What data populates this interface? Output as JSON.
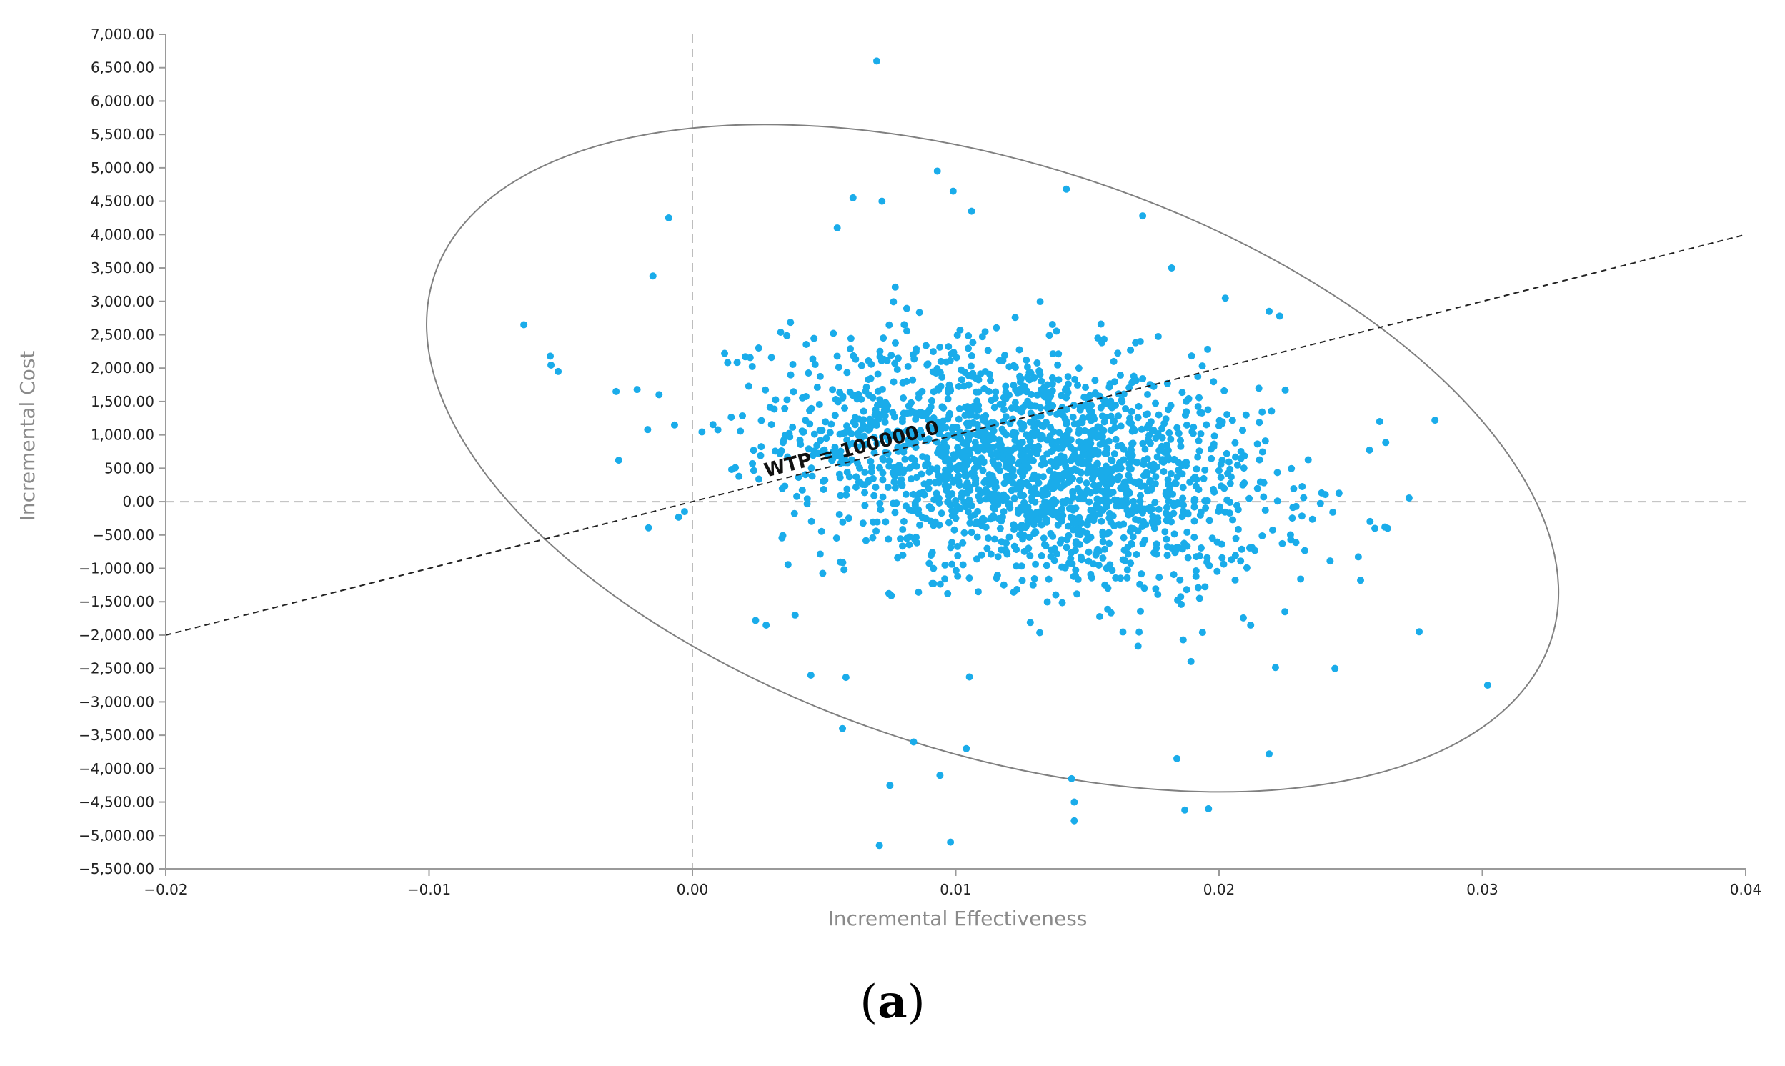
{
  "chart_data": {
    "type": "scatter",
    "xlabel": "Incremental Effectiveness",
    "ylabel": "Incremental Cost",
    "xlim": [
      -0.02,
      0.04
    ],
    "ylim": [
      -5500,
      7000
    ],
    "x_ticks": [
      "−0.02",
      "−0.01",
      "0.00",
      "0.01",
      "0.02",
      "0.03",
      "0.04"
    ],
    "y_ticks": [
      "7,000.00",
      "6,500.00",
      "6,000.00",
      "5,500.00",
      "5,000.00",
      "4,500.00",
      "4,000.00",
      "3,500.00",
      "3,000.00",
      "2,500.00",
      "2,000.00",
      "1,500.00",
      "1,000.00",
      "500.00",
      "0.00",
      "−500.00",
      "−1,000.00",
      "−1,500.00",
      "−2,000.00",
      "−2,500.00",
      "−3,000.00",
      "−3,500.00",
      "−4,000.00",
      "−4,500.00",
      "−5,000.00",
      "−5,500.00"
    ],
    "point_color": "#1aacea",
    "wtp_line": {
      "label": "WTP = 100000.0",
      "slope": 100000,
      "color": "#222222"
    },
    "confidence_ellipse": {
      "center": [
        0.0114,
        650
      ],
      "color": "#808080"
    },
    "reference_lines": {
      "x": 0,
      "y": 0,
      "color": "#bdbdbd"
    },
    "grid": false,
    "cloud": {
      "n": 2000,
      "mean": [
        0.0128,
        550
      ],
      "sd": [
        0.0045,
        900
      ]
    },
    "outliers": [
      [
        0.007,
        6600
      ],
      [
        0.0093,
        4950
      ],
      [
        0.0099,
        4650
      ],
      [
        0.0142,
        4680
      ],
      [
        0.0072,
        4500
      ],
      [
        0.0061,
        4550
      ],
      [
        0.0106,
        4350
      ],
      [
        0.0171,
        4280
      ],
      [
        -0.0009,
        4250
      ],
      [
        0.0055,
        4100
      ],
      [
        -0.0015,
        3380
      ],
      [
        0.0182,
        3500
      ],
      [
        0.0219,
        2850
      ],
      [
        0.0223,
        2780
      ],
      [
        -0.0064,
        2650
      ],
      [
        -0.0054,
        2180
      ],
      [
        -0.0051,
        1950
      ],
      [
        -0.0029,
        1650
      ],
      [
        -0.0028,
        620
      ],
      [
        -0.0021,
        1680
      ],
      [
        -0.0017,
        1080
      ],
      [
        0.0261,
        1200
      ],
      [
        0.0282,
        1220
      ],
      [
        0.0264,
        -400
      ],
      [
        0.0276,
        -1950
      ],
      [
        0.0302,
        -2750
      ],
      [
        0.0244,
        -2500
      ],
      [
        0.0219,
        -3780
      ],
      [
        0.0187,
        -4620
      ],
      [
        0.0196,
        -4600
      ],
      [
        0.0184,
        -3850
      ],
      [
        0.0144,
        -4150
      ],
      [
        0.0145,
        -4500
      ],
      [
        0.0145,
        -4780
      ],
      [
        0.0071,
        -5150
      ],
      [
        0.0098,
        -5100
      ],
      [
        0.0075,
        -4250
      ],
      [
        0.0094,
        -4100
      ],
      [
        0.0104,
        -3700
      ],
      [
        0.0084,
        -3600
      ],
      [
        0.0057,
        -3400
      ],
      [
        0.0045,
        -2600
      ],
      [
        0.0024,
        -1780
      ],
      [
        0.0028,
        -1850
      ],
      [
        -0.0003,
        -150
      ],
      [
        0.0039,
        -1700
      ],
      [
        0.0212,
        -1850
      ],
      [
        0.0225,
        -1650
      ]
    ]
  },
  "panel_label": "a"
}
